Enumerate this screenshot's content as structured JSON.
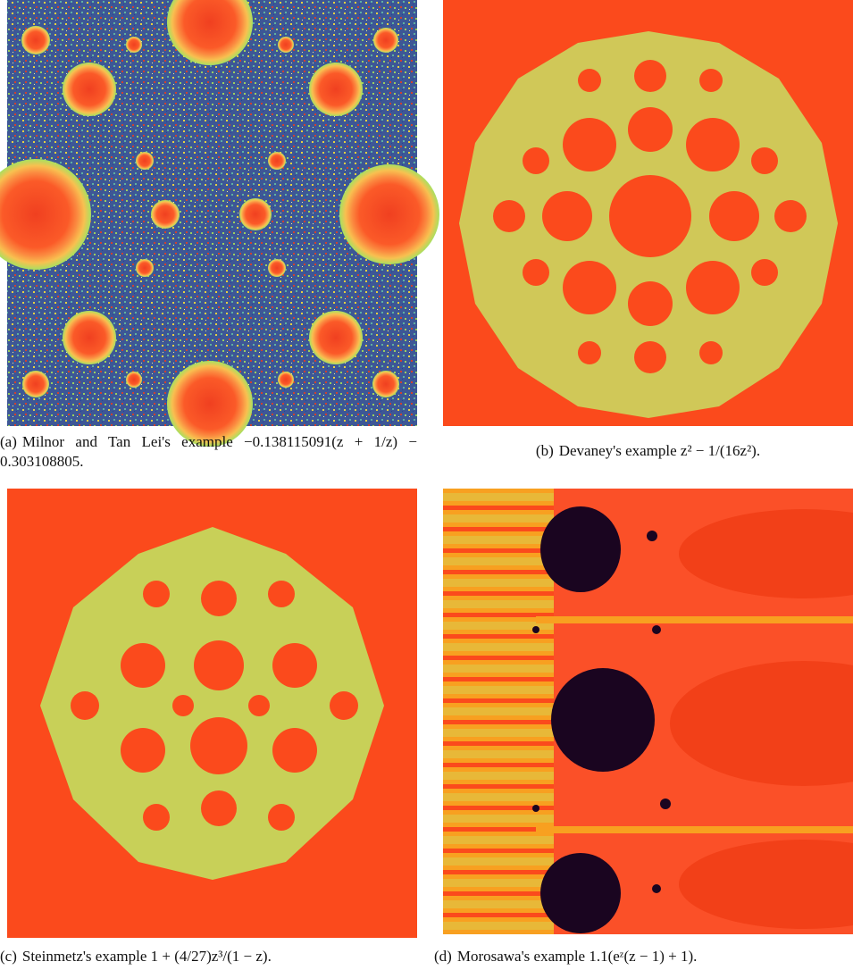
{
  "figure": {
    "panels": [
      {
        "label": "(a)",
        "caption": "Milnor and Tan Lei's example −0.138115091(z + 1/z) − 0.303108805."
      },
      {
        "label": "(b)",
        "caption": "Devaney's example z² − 1/(16z²)."
      },
      {
        "label": "(c)",
        "caption": "Steinmetz's example 1 + (4/27)z³/(1 − z)."
      },
      {
        "label": "(d)",
        "caption": "Morosawa's example 1.1(eᶻ(z − 1) + 1)."
      }
    ]
  }
}
